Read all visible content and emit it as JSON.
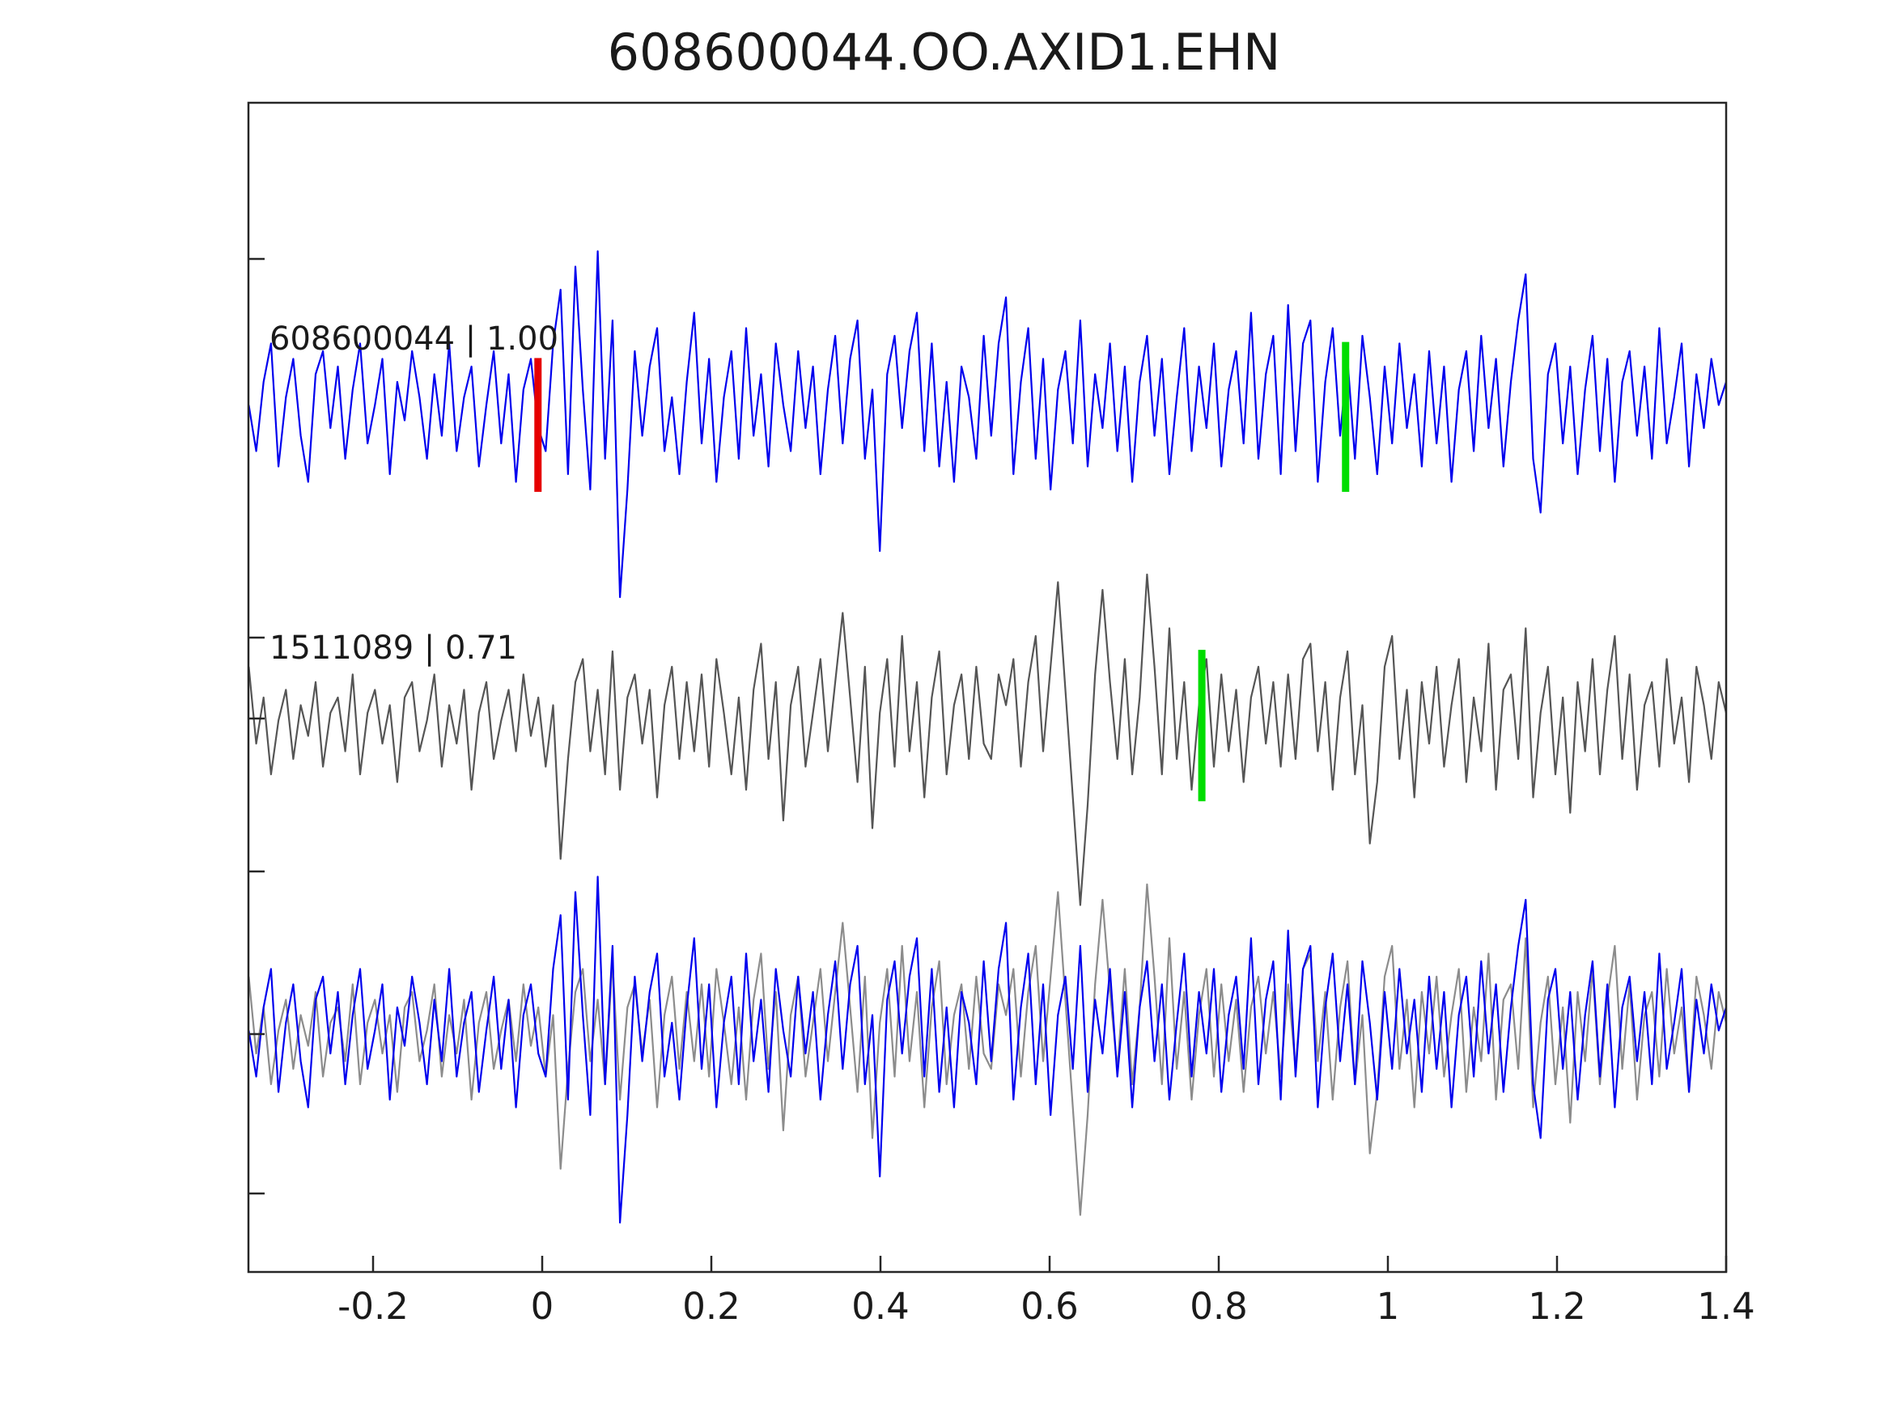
{
  "title": "608600044.OO.AXID1.EHN",
  "chart_data": {
    "type": "line",
    "title": "608600044.OO.AXID1.EHN",
    "xlabel": "",
    "ylabel": "",
    "grid": false,
    "legend_position": "none",
    "x_range": [
      -0.347,
      1.4
    ],
    "x_ticks": [
      -0.2,
      0,
      0.2,
      0.4,
      0.6,
      0.8,
      1,
      1.2,
      1.4
    ],
    "x_tick_labels": [
      "-0.2",
      "0",
      "0.2",
      "0.4",
      "0.6",
      "0.8",
      "1",
      "1.2",
      "1.4"
    ],
    "traces": [
      {
        "id": "detection",
        "label": "608600044 | 1.00",
        "correlation": "1.00",
        "color": "#0000ee",
        "values": [
          0.1,
          -0.5,
          0.4,
          0.9,
          -0.7,
          0.2,
          0.7,
          -0.3,
          -0.9,
          0.5,
          0.8,
          -0.2,
          0.6,
          -0.6,
          0.3,
          0.9,
          -0.4,
          0.1,
          0.7,
          -0.8,
          0.4,
          -0.1,
          0.8,
          0.2,
          -0.6,
          0.5,
          -0.3,
          0.9,
          -0.5,
          0.2,
          0.6,
          -0.7,
          0.1,
          0.8,
          -0.4,
          0.5,
          -0.9,
          0.3,
          0.7,
          -0.2,
          -0.5,
          0.9,
          1.6,
          -0.8,
          1.9,
          0.3,
          -1.0,
          2.1,
          -0.6,
          1.2,
          -2.4,
          -1.0,
          0.8,
          -0.3,
          0.6,
          1.1,
          -0.5,
          0.2,
          -0.8,
          0.4,
          1.3,
          -0.4,
          0.7,
          -0.9,
          0.2,
          0.8,
          -0.6,
          1.1,
          -0.3,
          0.5,
          -0.7,
          0.9,
          0.1,
          -0.5,
          0.8,
          -0.2,
          0.6,
          -0.8,
          0.3,
          1.0,
          -0.4,
          0.7,
          1.2,
          -0.6,
          0.3,
          -1.8,
          0.5,
          1.0,
          -0.2,
          0.8,
          1.3,
          -0.5,
          0.9,
          -0.7,
          0.4,
          -0.9,
          0.6,
          0.2,
          -0.6,
          1.0,
          -0.3,
          0.9,
          1.5,
          -0.8,
          0.4,
          1.1,
          -0.6,
          0.7,
          -1.0,
          0.3,
          0.8,
          -0.4,
          1.2,
          -0.7,
          0.5,
          -0.2,
          0.9,
          -0.5,
          0.6,
          -0.9,
          0.4,
          1.0,
          -0.3,
          0.7,
          -0.8,
          0.2,
          1.1,
          -0.5,
          0.6,
          -0.2,
          0.9,
          -0.7,
          0.3,
          0.8,
          -0.4,
          1.3,
          -0.6,
          0.5,
          1.0,
          -0.8,
          1.4,
          -0.5,
          0.9,
          1.2,
          -0.9,
          0.4,
          1.1,
          -0.3,
          0.7,
          -0.6,
          1.0,
          0.2,
          -0.8,
          0.6,
          -0.4,
          0.9,
          -0.2,
          0.5,
          -0.7,
          0.8,
          -0.4,
          0.6,
          -0.9,
          0.3,
          0.8,
          -0.5,
          1.0,
          -0.2,
          0.7,
          -0.7,
          0.4,
          1.2,
          1.8,
          -0.6,
          -1.3,
          0.5,
          0.9,
          -0.4,
          0.6,
          -0.8,
          0.3,
          1.0,
          -0.5,
          0.7,
          -0.9,
          0.4,
          0.8,
          -0.3,
          0.6,
          -0.6,
          1.1,
          -0.4,
          0.2,
          0.9,
          -0.7,
          0.5,
          -0.2,
          0.7,
          0.1,
          0.4
        ]
      },
      {
        "id": "template",
        "label": "1511089 | 0.71",
        "correlation": "0.71",
        "color": "#555555",
        "values": [
          0.8,
          -0.2,
          0.4,
          -0.6,
          0.1,
          0.5,
          -0.4,
          0.3,
          -0.1,
          0.6,
          -0.5,
          0.2,
          0.4,
          -0.3,
          0.7,
          -0.6,
          0.2,
          0.5,
          -0.2,
          0.3,
          -0.7,
          0.4,
          0.6,
          -0.3,
          0.1,
          0.7,
          -0.5,
          0.3,
          -0.2,
          0.5,
          -0.8,
          0.2,
          0.6,
          -0.4,
          0.1,
          0.5,
          -0.3,
          0.7,
          -0.1,
          0.4,
          -0.5,
          0.3,
          -1.7,
          -0.4,
          0.6,
          0.9,
          -0.3,
          0.5,
          -0.6,
          1.0,
          -0.8,
          0.4,
          0.7,
          -0.2,
          0.5,
          -0.9,
          0.3,
          0.8,
          -0.4,
          0.6,
          -0.3,
          0.7,
          -0.5,
          0.9,
          0.2,
          -0.6,
          0.4,
          -0.8,
          0.5,
          1.1,
          -0.4,
          0.6,
          -1.2,
          0.3,
          0.8,
          -0.5,
          0.2,
          0.9,
          -0.3,
          0.6,
          1.5,
          0.4,
          -0.7,
          0.8,
          -1.3,
          0.2,
          0.9,
          -0.5,
          1.2,
          -0.3,
          0.6,
          -0.9,
          0.4,
          1.0,
          -0.6,
          0.3,
          0.7,
          -0.4,
          0.8,
          -0.2,
          -0.4,
          0.7,
          0.3,
          0.9,
          -0.5,
          0.6,
          1.2,
          -0.3,
          0.8,
          1.9,
          0.5,
          -0.9,
          -2.3,
          -1.0,
          0.7,
          1.8,
          0.6,
          -0.4,
          0.9,
          -0.6,
          0.4,
          2.0,
          0.8,
          -0.6,
          1.3,
          -0.4,
          0.6,
          -0.8,
          0.3,
          0.9,
          -0.5,
          0.7,
          -0.3,
          0.5,
          -0.7,
          0.4,
          0.8,
          -0.2,
          0.6,
          -0.5,
          0.7,
          -0.4,
          0.9,
          1.1,
          -0.3,
          0.6,
          -0.8,
          0.4,
          1.0,
          -0.6,
          0.3,
          -1.5,
          -0.7,
          0.8,
          1.2,
          -0.4,
          0.5,
          -0.9,
          0.6,
          -0.2,
          0.8,
          -0.5,
          0.3,
          0.9,
          -0.7,
          0.4,
          -0.3,
          1.1,
          -0.8,
          0.5,
          0.7,
          -0.4,
          1.3,
          -0.9,
          0.2,
          0.8,
          -0.6,
          0.4,
          -1.1,
          0.6,
          -0.3,
          0.9,
          -0.6,
          0.5,
          1.2,
          -0.4,
          0.7,
          -0.8,
          0.3,
          0.6,
          -0.5,
          0.9,
          -0.2,
          0.4,
          -0.7,
          0.8,
          0.3,
          -0.4,
          0.6,
          0.2
        ]
      }
    ],
    "panels": [
      {
        "name": "detection-panel",
        "series": [
          {
            "trace": "detection"
          }
        ],
        "markers": [
          {
            "name": "pick-marker-red",
            "x": -0.005,
            "color": "#e60000",
            "top": 0.71,
            "bottom": -1.03
          },
          {
            "name": "pick-marker-green",
            "x": 0.95,
            "color": "#00dd00",
            "top": 0.92,
            "bottom": -1.03
          }
        ]
      },
      {
        "name": "template-panel",
        "series": [
          {
            "trace": "template"
          }
        ],
        "markers": [
          {
            "name": "pick-marker-green",
            "x": 0.78,
            "color": "#00dd00",
            "top": 1.02,
            "bottom": -0.95
          }
        ]
      },
      {
        "name": "overlay-panel",
        "series": [
          {
            "trace": "template",
            "color": "#8c8c8c"
          },
          {
            "trace": "detection"
          }
        ],
        "markers": []
      }
    ]
  }
}
